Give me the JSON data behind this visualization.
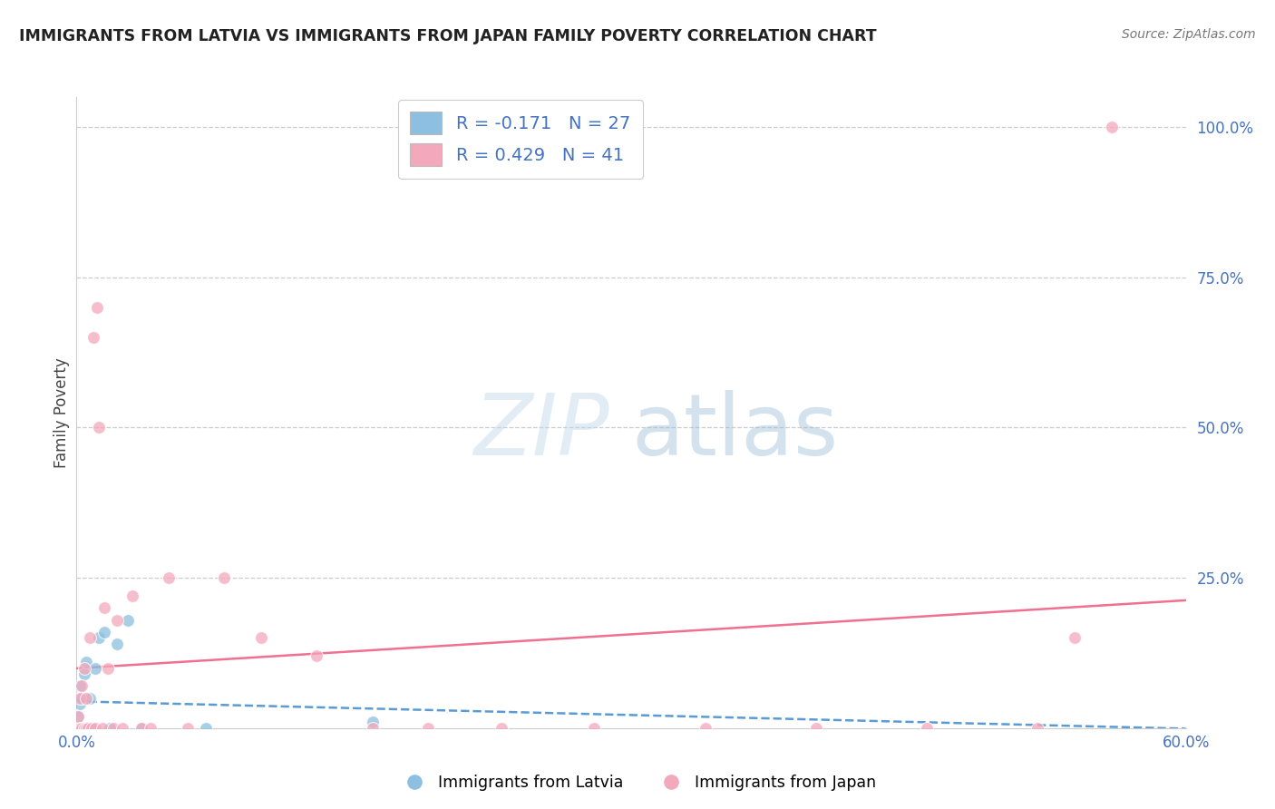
{
  "title": "IMMIGRANTS FROM LATVIA VS IMMIGRANTS FROM JAPAN FAMILY POVERTY CORRELATION CHART",
  "source": "Source: ZipAtlas.com",
  "ylabel": "Family Poverty",
  "watermark_zip": "ZIP",
  "watermark_atlas": "atlas",
  "xlim": [
    0.0,
    0.6
  ],
  "ylim": [
    0.0,
    1.05
  ],
  "latvia_R": -0.171,
  "latvia_N": 27,
  "japan_R": 0.429,
  "japan_N": 41,
  "color_latvia": "#8DC0E0",
  "color_japan": "#F4A8BC",
  "color_trend_latvia": "#5B9BD5",
  "color_trend_japan": "#F07090",
  "color_axis_labels": "#4472C4",
  "grid_color": "#CCCCCC",
  "background_color": "#FFFFFF",
  "latvia_x": [
    0.001,
    0.001,
    0.001,
    0.001,
    0.002,
    0.002,
    0.002,
    0.002,
    0.003,
    0.003,
    0.003,
    0.004,
    0.004,
    0.005,
    0.005,
    0.006,
    0.007,
    0.008,
    0.01,
    0.012,
    0.015,
    0.018,
    0.022,
    0.028,
    0.035,
    0.07,
    0.16
  ],
  "latvia_y": [
    0.0,
    0.0,
    0.0,
    0.02,
    0.0,
    0.0,
    0.04,
    0.07,
    0.0,
    0.0,
    0.05,
    0.0,
    0.09,
    0.0,
    0.11,
    0.0,
    0.05,
    0.0,
    0.1,
    0.15,
    0.16,
    0.0,
    0.14,
    0.18,
    0.0,
    0.0,
    0.01
  ],
  "japan_x": [
    0.001,
    0.001,
    0.002,
    0.002,
    0.003,
    0.003,
    0.004,
    0.004,
    0.005,
    0.005,
    0.006,
    0.007,
    0.008,
    0.009,
    0.01,
    0.011,
    0.012,
    0.014,
    0.015,
    0.017,
    0.02,
    0.022,
    0.025,
    0.03,
    0.035,
    0.04,
    0.05,
    0.06,
    0.08,
    0.1,
    0.13,
    0.16,
    0.19,
    0.23,
    0.28,
    0.34,
    0.4,
    0.46,
    0.52,
    0.54,
    0.56
  ],
  "japan_y": [
    0.0,
    0.02,
    0.0,
    0.05,
    0.0,
    0.07,
    0.0,
    0.1,
    0.0,
    0.05,
    0.0,
    0.15,
    0.0,
    0.65,
    0.0,
    0.7,
    0.5,
    0.0,
    0.2,
    0.1,
    0.0,
    0.18,
    0.0,
    0.22,
    0.0,
    0.0,
    0.25,
    0.0,
    0.25,
    0.15,
    0.12,
    0.0,
    0.0,
    0.0,
    0.0,
    0.0,
    0.0,
    0.0,
    0.0,
    0.15,
    1.0
  ]
}
